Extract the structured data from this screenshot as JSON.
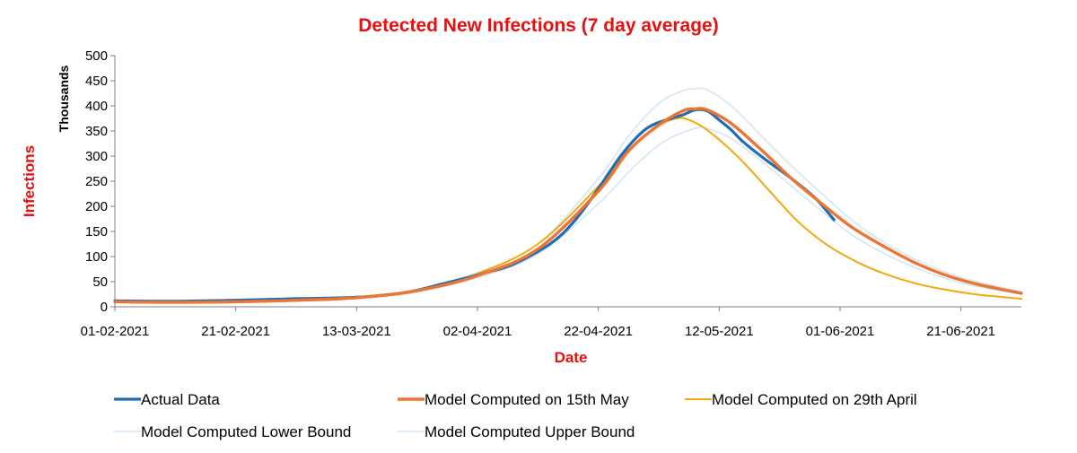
{
  "colors": {
    "title": "#e8100f",
    "actual": "#1f6db5",
    "model_15may": "#ed7431",
    "model_29apr": "#f1a90f",
    "bound": "#d4e6f5",
    "axis": "#7f7f7f"
  },
  "chart_data": {
    "type": "line",
    "title": "Detected New Infections (7 day average)",
    "xlabel": "Date",
    "ylabel": "Infections",
    "y_unit_label": "Thousands",
    "xlim": [
      "2021-02-01",
      "2021-07-01"
    ],
    "ylim": [
      0,
      500
    ],
    "x_ticks": [
      "01-02-2021",
      "21-02-2021",
      "13-03-2021",
      "02-04-2021",
      "22-04-2021",
      "12-05-2021",
      "01-06-2021",
      "21-06-2021"
    ],
    "y_ticks": [
      "0",
      "50",
      "100",
      "150",
      "200",
      "250",
      "300",
      "350",
      "400",
      "450",
      "500"
    ],
    "legend_position": "bottom",
    "series": [
      {
        "name": "Actual Data",
        "color": "#1f6db5",
        "points": [
          [
            "2021-02-01",
            12
          ],
          [
            "2021-02-11",
            11
          ],
          [
            "2021-02-21",
            13
          ],
          [
            "2021-03-03",
            16
          ],
          [
            "2021-03-13",
            19
          ],
          [
            "2021-03-21",
            28
          ],
          [
            "2021-03-27",
            45
          ],
          [
            "2021-04-01",
            60
          ],
          [
            "2021-04-04",
            70
          ],
          [
            "2021-04-08",
            85
          ],
          [
            "2021-04-14",
            125
          ],
          [
            "2021-04-18",
            170
          ],
          [
            "2021-04-22",
            235
          ],
          [
            "2021-04-26",
            305
          ],
          [
            "2021-04-30",
            355
          ],
          [
            "2021-05-04",
            375
          ],
          [
            "2021-05-06",
            382
          ],
          [
            "2021-05-08",
            392
          ],
          [
            "2021-05-10",
            390
          ],
          [
            "2021-05-12",
            372
          ],
          [
            "2021-05-14",
            352
          ],
          [
            "2021-05-16",
            328
          ],
          [
            "2021-05-20",
            290
          ],
          [
            "2021-05-24",
            255
          ],
          [
            "2021-05-28",
            215
          ],
          [
            "2021-05-31",
            173
          ]
        ]
      },
      {
        "name": "Model Computed on 15th May",
        "color": "#ed7431",
        "points": [
          [
            "2021-02-01",
            10
          ],
          [
            "2021-02-11",
            9
          ],
          [
            "2021-02-21",
            10
          ],
          [
            "2021-03-03",
            13
          ],
          [
            "2021-03-13",
            18
          ],
          [
            "2021-03-23",
            32
          ],
          [
            "2021-04-02",
            62
          ],
          [
            "2021-04-12",
            115
          ],
          [
            "2021-04-22",
            230
          ],
          [
            "2021-04-27",
            310
          ],
          [
            "2021-05-02",
            362
          ],
          [
            "2021-05-06",
            390
          ],
          [
            "2021-05-08",
            394
          ],
          [
            "2021-05-10",
            392
          ],
          [
            "2021-05-14",
            365
          ],
          [
            "2021-05-19",
            312
          ],
          [
            "2021-05-24",
            255
          ],
          [
            "2021-05-29",
            205
          ],
          [
            "2021-06-03",
            158
          ],
          [
            "2021-06-08",
            122
          ],
          [
            "2021-06-13",
            90
          ],
          [
            "2021-06-18",
            65
          ],
          [
            "2021-06-23",
            47
          ],
          [
            "2021-06-28",
            34
          ],
          [
            "2021-07-01",
            27
          ]
        ]
      },
      {
        "name": "Model Computed on 29th April",
        "color": "#f1a90f",
        "points": [
          [
            "2021-02-01",
            9
          ],
          [
            "2021-02-11",
            8
          ],
          [
            "2021-02-21",
            9
          ],
          [
            "2021-03-03",
            12
          ],
          [
            "2021-03-13",
            18
          ],
          [
            "2021-03-23",
            33
          ],
          [
            "2021-04-02",
            66
          ],
          [
            "2021-04-12",
            125
          ],
          [
            "2021-04-22",
            240
          ],
          [
            "2021-04-27",
            312
          ],
          [
            "2021-05-02",
            360
          ],
          [
            "2021-05-05",
            375
          ],
          [
            "2021-05-07",
            372
          ],
          [
            "2021-05-10",
            352
          ],
          [
            "2021-05-15",
            300
          ],
          [
            "2021-05-20",
            235
          ],
          [
            "2021-05-25",
            170
          ],
          [
            "2021-05-30",
            122
          ],
          [
            "2021-06-04",
            88
          ],
          [
            "2021-06-09",
            63
          ],
          [
            "2021-06-14",
            45
          ],
          [
            "2021-06-19",
            33
          ],
          [
            "2021-06-24",
            24
          ],
          [
            "2021-07-01",
            16
          ]
        ]
      },
      {
        "name": "Model Computed Lower Bound",
        "color": "#d4e6f5",
        "points": [
          [
            "2021-02-01",
            9
          ],
          [
            "2021-02-21",
            9
          ],
          [
            "2021-03-13",
            17
          ],
          [
            "2021-03-23",
            30
          ],
          [
            "2021-04-02",
            58
          ],
          [
            "2021-04-12",
            105
          ],
          [
            "2021-04-22",
            205
          ],
          [
            "2021-04-28",
            280
          ],
          [
            "2021-05-03",
            330
          ],
          [
            "2021-05-08",
            355
          ],
          [
            "2021-05-10",
            355
          ],
          [
            "2021-05-14",
            335
          ],
          [
            "2021-05-19",
            290
          ],
          [
            "2021-05-24",
            240
          ],
          [
            "2021-05-29",
            190
          ],
          [
            "2021-06-03",
            143
          ],
          [
            "2021-06-08",
            108
          ],
          [
            "2021-06-13",
            80
          ],
          [
            "2021-06-18",
            58
          ],
          [
            "2021-06-23",
            42
          ],
          [
            "2021-07-01",
            25
          ]
        ]
      },
      {
        "name": "Model Computed Upper Bound",
        "color": "#d4e6f5",
        "points": [
          [
            "2021-02-01",
            11
          ],
          [
            "2021-02-21",
            11
          ],
          [
            "2021-03-13",
            20
          ],
          [
            "2021-03-23",
            35
          ],
          [
            "2021-04-02",
            68
          ],
          [
            "2021-04-12",
            125
          ],
          [
            "2021-04-22",
            255
          ],
          [
            "2021-04-27",
            340
          ],
          [
            "2021-05-02",
            405
          ],
          [
            "2021-05-06",
            430
          ],
          [
            "2021-05-08",
            434
          ],
          [
            "2021-05-10",
            432
          ],
          [
            "2021-05-14",
            400
          ],
          [
            "2021-05-19",
            340
          ],
          [
            "2021-05-24",
            280
          ],
          [
            "2021-05-29",
            225
          ],
          [
            "2021-06-03",
            172
          ],
          [
            "2021-06-08",
            130
          ],
          [
            "2021-06-13",
            97
          ],
          [
            "2021-06-18",
            71
          ],
          [
            "2021-06-23",
            52
          ],
          [
            "2021-07-01",
            30
          ]
        ]
      }
    ]
  }
}
